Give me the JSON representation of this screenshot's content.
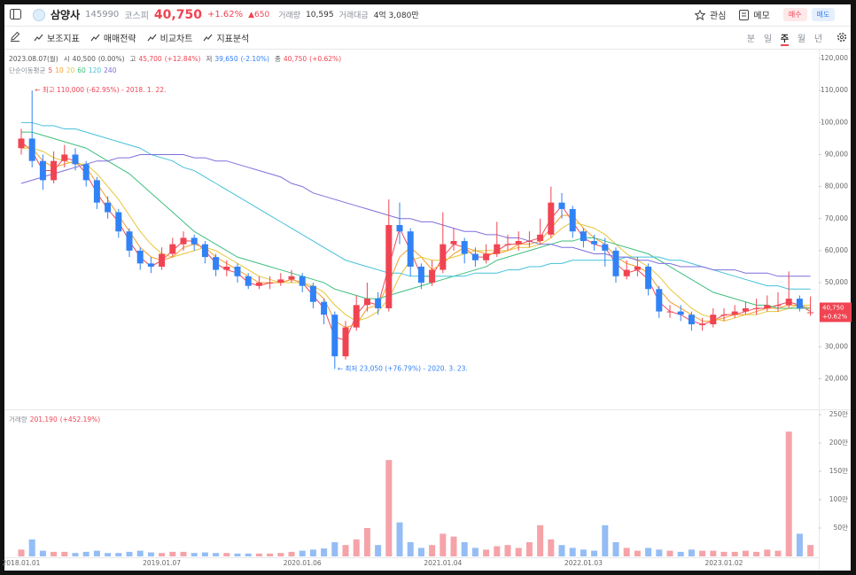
{
  "header": {
    "name": "삼양사",
    "code": "145990",
    "market": "코스피",
    "price": "40,750",
    "change_pct": "+1.62%",
    "change": "▲650",
    "volume_label": "거래량",
    "volume": "10,595",
    "amount_label": "거래대금",
    "amount": "4억 3,080만",
    "watch": "관심",
    "memo": "메모",
    "buy": "매수",
    "sell": "매도"
  },
  "toolbar": {
    "items": [
      "보조지표",
      "매매전략",
      "비교차트",
      "지표분석"
    ],
    "periods": [
      "분",
      "일",
      "주",
      "월",
      "년"
    ],
    "active_period": 2
  },
  "info": {
    "date": "2023.08.07(월)",
    "items": [
      {
        "label": "시",
        "value": "40,500",
        "change": "(0.00%)",
        "color": "#555555"
      },
      {
        "label": "고",
        "value": "45,700",
        "change": "(+12.84%)",
        "color": "#f04452"
      },
      {
        "label": "저",
        "value": "39,650",
        "change": "(-2.10%)",
        "color": "#3182f6"
      },
      {
        "label": "종",
        "value": "40,750",
        "change": "(+0.62%)",
        "color": "#f04452"
      }
    ]
  },
  "chart_data": [
    {
      "type": "candlestick",
      "ma_title": "단순이동평균",
      "categories": [
        "2018.01.01",
        null,
        null,
        null,
        null,
        null,
        null,
        null,
        null,
        null,
        null,
        null,
        null,
        "2019.01.07",
        null,
        null,
        null,
        null,
        null,
        null,
        null,
        null,
        null,
        null,
        null,
        null,
        "2020.01.06",
        null,
        null,
        null,
        null,
        null,
        null,
        null,
        null,
        null,
        null,
        null,
        null,
        "2021.01.04",
        null,
        null,
        null,
        null,
        null,
        null,
        null,
        null,
        null,
        null,
        null,
        null,
        "2022.01.03",
        null,
        null,
        null,
        null,
        null,
        null,
        null,
        null,
        null,
        null,
        null,
        null,
        "2023.01.02",
        null,
        null,
        null,
        null,
        null,
        null,
        null,
        null
      ],
      "open": [
        92000,
        95000,
        88000,
        82000,
        88000,
        90000,
        87000,
        82000,
        75000,
        72000,
        66000,
        60000,
        56000,
        55000,
        59000,
        62000,
        64000,
        62000,
        58000,
        54000,
        55000,
        52000,
        49000,
        50000,
        50000,
        51000,
        52000,
        49000,
        44000,
        40000,
        27000,
        36000,
        43000,
        45000,
        42000,
        68000,
        66000,
        55000,
        50000,
        54000,
        62000,
        63000,
        59000,
        57000,
        59000,
        62000,
        62000,
        63000,
        63000,
        65000,
        75000,
        73000,
        66000,
        63000,
        62000,
        60000,
        52000,
        54000,
        55000,
        48000,
        41000,
        41000,
        40000,
        37000,
        37000,
        40000,
        40000,
        41000,
        42000,
        42000,
        43000,
        43000,
        45000,
        40500
      ],
      "high": [
        98000,
        110000,
        90000,
        91000,
        93000,
        92000,
        88000,
        83000,
        77000,
        73000,
        67000,
        61000,
        58000,
        61000,
        64000,
        66000,
        65000,
        63000,
        59000,
        57000,
        56000,
        53000,
        52000,
        52000,
        53000,
        54000,
        53000,
        50000,
        45000,
        41000,
        38000,
        46000,
        50000,
        47000,
        76000,
        75000,
        67000,
        56000,
        57000,
        72000,
        67000,
        64000,
        61000,
        62000,
        69000,
        65000,
        66000,
        66000,
        70000,
        80000,
        78000,
        74000,
        67000,
        65000,
        64000,
        61000,
        57000,
        58000,
        56000,
        49000,
        43000,
        43000,
        41000,
        39000,
        42000,
        42000,
        43000,
        44000,
        45000,
        46000,
        47000,
        53500,
        46000,
        45700
      ],
      "low": [
        90000,
        86000,
        79000,
        81000,
        86000,
        85000,
        80000,
        73000,
        70000,
        64000,
        58000,
        54000,
        53000,
        54000,
        58000,
        60000,
        60000,
        56000,
        52000,
        52000,
        50000,
        48000,
        48000,
        48000,
        49000,
        50000,
        47000,
        42000,
        37000,
        23050,
        26000,
        35000,
        41000,
        40000,
        41000,
        62000,
        52000,
        48000,
        49000,
        53000,
        60000,
        56000,
        55000,
        56000,
        58000,
        60000,
        60000,
        61000,
        62000,
        64000,
        70000,
        64000,
        61000,
        60000,
        55000,
        50000,
        51000,
        52000,
        46000,
        39000,
        39000,
        38000,
        35000,
        35000,
        36000,
        38000,
        39000,
        40000,
        40000,
        41000,
        41000,
        42000,
        41000,
        39650
      ],
      "close": [
        95000,
        88000,
        82000,
        88000,
        90000,
        87000,
        82000,
        75000,
        72000,
        66000,
        60000,
        56000,
        55000,
        59000,
        62000,
        64000,
        62000,
        58000,
        54000,
        55000,
        52000,
        49000,
        50000,
        50000,
        51000,
        52000,
        49000,
        44000,
        40000,
        27000,
        36000,
        43000,
        45000,
        42000,
        68000,
        66000,
        55000,
        50000,
        54000,
        62000,
        63000,
        59000,
        57000,
        59000,
        62000,
        62000,
        63000,
        63000,
        65000,
        75000,
        73000,
        66000,
        63000,
        62000,
        60000,
        52000,
        54000,
        55000,
        48000,
        41000,
        41000,
        40000,
        37000,
        37000,
        40000,
        40000,
        41000,
        42000,
        42000,
        43000,
        43000,
        45000,
        42000,
        40750
      ],
      "up_color": "#f04452",
      "down_color": "#3182f6",
      "series": [
        {
          "name": "5",
          "color": "#ef4b5a",
          "values": [
            94000,
            91000,
            85000,
            85000,
            89000,
            88000,
            84000,
            78000,
            73000,
            69000,
            63000,
            58000,
            55000,
            57000,
            60000,
            63000,
            63000,
            60000,
            56000,
            54000,
            53000,
            50000,
            49000,
            50000,
            50000,
            51000,
            50000,
            46000,
            42000,
            33000,
            32000,
            40000,
            44000,
            43000,
            55000,
            67000,
            60000,
            52000,
            52000,
            58000,
            62000,
            61000,
            58000,
            58000,
            60000,
            62000,
            62000,
            63000,
            64000,
            70000,
            74000,
            69000,
            64000,
            62000,
            61000,
            56000,
            53000,
            54000,
            51000,
            44000,
            41000,
            40000,
            38000,
            37000,
            38000,
            40000,
            40000,
            41000,
            42000,
            42000,
            43000,
            44000,
            43000,
            41000
          ]
        },
        {
          "name": "10",
          "color": "#f59e2e",
          "values": [
            93000,
            92000,
            88000,
            86000,
            87000,
            88000,
            86000,
            81000,
            76000,
            71000,
            66000,
            61000,
            58000,
            57000,
            58000,
            61000,
            62000,
            61000,
            58000,
            56000,
            54000,
            52000,
            50000,
            50000,
            50000,
            51000,
            50000,
            48000,
            45000,
            38000,
            36000,
            37000,
            42000,
            43000,
            50000,
            58000,
            61000,
            58000,
            54000,
            56000,
            59000,
            61000,
            60000,
            59000,
            59000,
            60000,
            62000,
            62000,
            63000,
            67000,
            71000,
            71000,
            67000,
            64000,
            62000,
            58000,
            56000,
            55000,
            53000,
            48000,
            44000,
            42000,
            40000,
            38000,
            38000,
            39000,
            40000,
            40000,
            41000,
            42000,
            42000,
            43000,
            43000,
            42000
          ]
        },
        {
          "name": "20",
          "color": "#e8c53a",
          "values": [
            92000,
            92000,
            91000,
            89000,
            88000,
            87000,
            87000,
            84000,
            80000,
            76000,
            71000,
            66000,
            62000,
            59000,
            58000,
            59000,
            60000,
            61000,
            60000,
            58000,
            56000,
            54000,
            52000,
            51000,
            50000,
            50000,
            50000,
            49000,
            47000,
            43000,
            40000,
            38000,
            39000,
            41000,
            45000,
            52000,
            57000,
            58000,
            57000,
            57000,
            58000,
            59000,
            60000,
            60000,
            60000,
            60000,
            61000,
            61000,
            62000,
            64000,
            67000,
            69000,
            68000,
            67000,
            65000,
            62000,
            59000,
            57000,
            55000,
            52000,
            48000,
            45000,
            42000,
            40000,
            39000,
            38000,
            39000,
            40000,
            40000,
            41000,
            41000,
            42000,
            43000,
            43000
          ]
        },
        {
          "name": "60",
          "color": "#3fbf7f",
          "values": [
            97000,
            97000,
            96000,
            95000,
            94000,
            93000,
            92000,
            90000,
            88000,
            86000,
            84000,
            81000,
            78000,
            75000,
            72000,
            69000,
            66000,
            64000,
            62000,
            60000,
            58000,
            57000,
            56000,
            55000,
            54000,
            53000,
            52000,
            51000,
            50000,
            48000,
            47000,
            46000,
            45000,
            45000,
            46000,
            47000,
            48000,
            49000,
            50000,
            51000,
            52000,
            53000,
            54000,
            55000,
            57000,
            58000,
            59000,
            60000,
            61000,
            62000,
            63000,
            63000,
            64000,
            64000,
            63000,
            62000,
            61000,
            60000,
            59000,
            57000,
            55000,
            53000,
            51000,
            49000,
            47000,
            46000,
            45000,
            44000,
            43000,
            43000,
            42000,
            42000,
            42000,
            42000
          ]
        },
        {
          "name": "120",
          "color": "#45c1d9",
          "values": [
            100000,
            100000,
            99000,
            99000,
            98000,
            98000,
            97000,
            96000,
            95000,
            94000,
            93000,
            92000,
            90000,
            89000,
            88000,
            86000,
            85000,
            83000,
            81000,
            79000,
            77000,
            75000,
            73000,
            71000,
            69000,
            67000,
            65000,
            63000,
            61000,
            59000,
            57000,
            56000,
            55000,
            54000,
            53000,
            53000,
            52000,
            52000,
            52000,
            52000,
            52000,
            52000,
            53000,
            53000,
            53000,
            54000,
            54000,
            55000,
            55000,
            56000,
            56000,
            57000,
            57000,
            57000,
            57000,
            57000,
            58000,
            58000,
            58000,
            58000,
            57000,
            57000,
            56000,
            55000,
            54000,
            53000,
            52000,
            51000,
            50000,
            49000,
            49000,
            48000,
            48000,
            48000
          ]
        },
        {
          "name": "240",
          "color": "#7f6fdc",
          "values": [
            81000,
            82000,
            83000,
            84000,
            85000,
            86000,
            87000,
            88000,
            88000,
            89000,
            89000,
            90000,
            90000,
            90000,
            90000,
            90000,
            89000,
            89000,
            88000,
            88000,
            87000,
            86000,
            85000,
            84000,
            83000,
            81000,
            80000,
            78000,
            77000,
            76000,
            75000,
            74000,
            73000,
            72000,
            71000,
            70000,
            70000,
            69000,
            69000,
            68000,
            67000,
            66000,
            66000,
            65000,
            65000,
            64000,
            64000,
            63000,
            62000,
            62000,
            61000,
            61000,
            60000,
            59000,
            59000,
            58000,
            58000,
            57000,
            57000,
            56000,
            56000,
            55000,
            55000,
            55000,
            54000,
            54000,
            54000,
            53000,
            53000,
            53000,
            52000,
            52000,
            52000,
            52000
          ]
        }
      ],
      "ylim": [
        11000,
        122500
      ],
      "yticks": [
        {
          "value": 20000,
          "label": "20,000"
        },
        {
          "value": 30000,
          "label": "30,000"
        },
        {
          "value": 40000,
          "label": "40,000"
        },
        {
          "value": 50000,
          "label": "50,000"
        },
        {
          "value": 60000,
          "label": "60,000"
        },
        {
          "value": 70000,
          "label": "70,000"
        },
        {
          "value": 80000,
          "label": "80,000"
        },
        {
          "value": 90000,
          "label": "90,000"
        },
        {
          "value": 100000,
          "label": "100,000"
        },
        {
          "value": 110000,
          "label": "110,000"
        },
        {
          "value": 120000,
          "label": "120,000"
        }
      ],
      "annotations": [
        "← 최고 110,000 (-62.95%) - 2018. 1. 22.",
        "← 최저 23,050 (+76.79%) - 2020. 3. 23."
      ],
      "last_price": {
        "value": 40750,
        "label": "40,750"
      },
      "last_change": "+0.62%",
      "grid": false
    },
    {
      "type": "bar",
      "title": "거래량",
      "value_text": "201,190",
      "change_text": "(+452.19%)",
      "up_color": "#f5a3a9",
      "down_color": "#94bdf5",
      "values": [
        120000,
        300000,
        100000,
        80000,
        80000,
        60000,
        80000,
        100000,
        60000,
        60000,
        80000,
        100000,
        70000,
        60000,
        80000,
        80000,
        60000,
        70000,
        60000,
        60000,
        50000,
        50000,
        50000,
        50000,
        60000,
        80000,
        100000,
        120000,
        140000,
        250000,
        200000,
        300000,
        500000,
        200000,
        1700000,
        600000,
        250000,
        150000,
        200000,
        400000,
        350000,
        250000,
        150000,
        120000,
        180000,
        200000,
        150000,
        250000,
        550000,
        300000,
        200000,
        150000,
        120000,
        100000,
        550000,
        250000,
        150000,
        100000,
        150000,
        120000,
        100000,
        80000,
        120000,
        100000,
        100000,
        80000,
        80000,
        100000,
        80000,
        120000,
        100000,
        2200000,
        400000,
        201190
      ],
      "ylim": [
        0,
        2500000
      ],
      "yticks": [
        {
          "value": 500000,
          "label": "50만"
        },
        {
          "value": 1000000,
          "label": "100만"
        },
        {
          "value": 1500000,
          "label": "150만"
        },
        {
          "value": 2000000,
          "label": "200만"
        },
        {
          "value": 2500000,
          "label": "250만"
        }
      ],
      "grid": false
    }
  ]
}
